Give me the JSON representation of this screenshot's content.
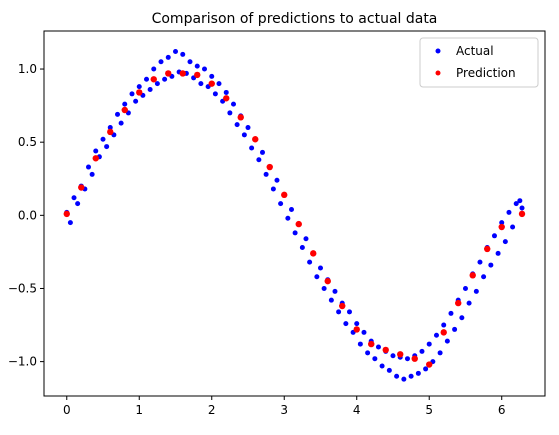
{
  "chart_data": {
    "type": "scatter",
    "title": "Comparison of predictions to actual data",
    "xlabel": "",
    "ylabel": "",
    "xlim": [
      -0.314,
      6.597
    ],
    "ylim": [
      -1.235,
      1.26
    ],
    "xticks": [
      0,
      1,
      2,
      3,
      4,
      5,
      6
    ],
    "yticks": [
      -1.0,
      -0.5,
      0.0,
      0.5,
      1.0
    ],
    "xtick_labels": [
      "0",
      "1",
      "2",
      "3",
      "4",
      "5",
      "6"
    ],
    "ytick_labels": [
      "−1.0",
      "−0.5",
      "0.0",
      "0.5",
      "1.0"
    ],
    "grid": false,
    "legend_position": "top-right",
    "series": [
      {
        "name": "Actual",
        "color": "#0000ff",
        "points": [
          [
            0.0,
            0.02
          ],
          [
            0.05,
            -0.05
          ],
          [
            0.1,
            0.12
          ],
          [
            0.15,
            0.08
          ],
          [
            0.2,
            0.2
          ],
          [
            0.25,
            0.18
          ],
          [
            0.3,
            0.33
          ],
          [
            0.35,
            0.28
          ],
          [
            0.4,
            0.44
          ],
          [
            0.45,
            0.4
          ],
          [
            0.5,
            0.52
          ],
          [
            0.55,
            0.47
          ],
          [
            0.6,
            0.6
          ],
          [
            0.65,
            0.55
          ],
          [
            0.7,
            0.69
          ],
          [
            0.75,
            0.63
          ],
          [
            0.8,
            0.76
          ],
          [
            0.85,
            0.7
          ],
          [
            0.9,
            0.83
          ],
          [
            0.95,
            0.78
          ],
          [
            1.0,
            0.88
          ],
          [
            1.05,
            0.82
          ],
          [
            1.1,
            0.93
          ],
          [
            1.15,
            0.86
          ],
          [
            1.2,
            1.0
          ],
          [
            1.25,
            0.9
          ],
          [
            1.3,
            1.05
          ],
          [
            1.35,
            0.93
          ],
          [
            1.4,
            1.08
          ],
          [
            1.45,
            0.95
          ],
          [
            1.5,
            1.12
          ],
          [
            1.55,
            0.98
          ],
          [
            1.6,
            1.1
          ],
          [
            1.65,
            0.97
          ],
          [
            1.7,
            1.05
          ],
          [
            1.75,
            0.94
          ],
          [
            1.8,
            1.02
          ],
          [
            1.85,
            0.9
          ],
          [
            1.9,
            1.0
          ],
          [
            1.95,
            0.88
          ],
          [
            2.0,
            0.95
          ],
          [
            2.05,
            0.83
          ],
          [
            2.1,
            0.9
          ],
          [
            2.15,
            0.78
          ],
          [
            2.2,
            0.84
          ],
          [
            2.25,
            0.7
          ],
          [
            2.3,
            0.76
          ],
          [
            2.35,
            0.62
          ],
          [
            2.4,
            0.68
          ],
          [
            2.45,
            0.55
          ],
          [
            2.5,
            0.6
          ],
          [
            2.55,
            0.46
          ],
          [
            2.6,
            0.52
          ],
          [
            2.65,
            0.38
          ],
          [
            2.7,
            0.43
          ],
          [
            2.75,
            0.28
          ],
          [
            2.8,
            0.33
          ],
          [
            2.85,
            0.18
          ],
          [
            2.9,
            0.24
          ],
          [
            2.95,
            0.08
          ],
          [
            3.0,
            0.14
          ],
          [
            3.05,
            -0.02
          ],
          [
            3.1,
            0.04
          ],
          [
            3.15,
            -0.12
          ],
          [
            3.2,
            -0.06
          ],
          [
            3.25,
            -0.22
          ],
          [
            3.3,
            -0.16
          ],
          [
            3.35,
            -0.32
          ],
          [
            3.4,
            -0.26
          ],
          [
            3.45,
            -0.42
          ],
          [
            3.5,
            -0.36
          ],
          [
            3.55,
            -0.5
          ],
          [
            3.6,
            -0.44
          ],
          [
            3.65,
            -0.58
          ],
          [
            3.7,
            -0.52
          ],
          [
            3.75,
            -0.66
          ],
          [
            3.8,
            -0.6
          ],
          [
            3.85,
            -0.74
          ],
          [
            3.9,
            -0.66
          ],
          [
            3.95,
            -0.8
          ],
          [
            4.0,
            -0.74
          ],
          [
            4.05,
            -0.88
          ],
          [
            4.1,
            -0.8
          ],
          [
            4.15,
            -0.94
          ],
          [
            4.2,
            -0.86
          ],
          [
            4.25,
            -0.98
          ],
          [
            4.3,
            -0.9
          ],
          [
            4.35,
            -1.03
          ],
          [
            4.4,
            -0.93
          ],
          [
            4.45,
            -1.06
          ],
          [
            4.5,
            -0.96
          ],
          [
            4.55,
            -1.1
          ],
          [
            4.6,
            -0.97
          ],
          [
            4.65,
            -1.12
          ],
          [
            4.7,
            -0.98
          ],
          [
            4.75,
            -1.1
          ],
          [
            4.8,
            -0.96
          ],
          [
            4.85,
            -1.08
          ],
          [
            4.9,
            -0.93
          ],
          [
            4.95,
            -1.05
          ],
          [
            5.0,
            -0.88
          ],
          [
            5.05,
            -1.0
          ],
          [
            5.1,
            -0.82
          ],
          [
            5.15,
            -0.94
          ],
          [
            5.2,
            -0.75
          ],
          [
            5.25,
            -0.86
          ],
          [
            5.3,
            -0.67
          ],
          [
            5.35,
            -0.78
          ],
          [
            5.4,
            -0.58
          ],
          [
            5.45,
            -0.7
          ],
          [
            5.5,
            -0.5
          ],
          [
            5.55,
            -0.6
          ],
          [
            5.6,
            -0.4
          ],
          [
            5.65,
            -0.52
          ],
          [
            5.7,
            -0.32
          ],
          [
            5.75,
            -0.42
          ],
          [
            5.8,
            -0.22
          ],
          [
            5.85,
            -0.34
          ],
          [
            5.9,
            -0.14
          ],
          [
            5.95,
            -0.26
          ],
          [
            6.0,
            -0.05
          ],
          [
            6.05,
            -0.18
          ],
          [
            6.1,
            0.02
          ],
          [
            6.15,
            -0.08
          ],
          [
            6.2,
            0.08
          ],
          [
            6.25,
            0.1
          ],
          [
            6.28,
            0.05
          ]
        ]
      },
      {
        "name": "Prediction",
        "color": "#ff0000",
        "points": [
          [
            0.0,
            0.01
          ],
          [
            0.2,
            0.19
          ],
          [
            0.4,
            0.39
          ],
          [
            0.6,
            0.57
          ],
          [
            0.8,
            0.72
          ],
          [
            1.0,
            0.84
          ],
          [
            1.2,
            0.93
          ],
          [
            1.4,
            0.97
          ],
          [
            1.6,
            0.97
          ],
          [
            1.8,
            0.96
          ],
          [
            2.0,
            0.9
          ],
          [
            2.2,
            0.8
          ],
          [
            2.4,
            0.67
          ],
          [
            2.6,
            0.52
          ],
          [
            2.8,
            0.33
          ],
          [
            3.0,
            0.14
          ],
          [
            3.2,
            -0.06
          ],
          [
            3.4,
            -0.26
          ],
          [
            3.6,
            -0.45
          ],
          [
            3.8,
            -0.62
          ],
          [
            4.0,
            -0.78
          ],
          [
            4.2,
            -0.88
          ],
          [
            4.4,
            -0.92
          ],
          [
            4.6,
            -0.95
          ],
          [
            4.8,
            -0.98
          ],
          [
            5.0,
            -1.02
          ],
          [
            5.2,
            -0.8
          ],
          [
            5.4,
            -0.6
          ],
          [
            5.6,
            -0.41
          ],
          [
            5.8,
            -0.23
          ],
          [
            6.0,
            -0.08
          ],
          [
            6.28,
            0.01
          ]
        ]
      }
    ]
  }
}
